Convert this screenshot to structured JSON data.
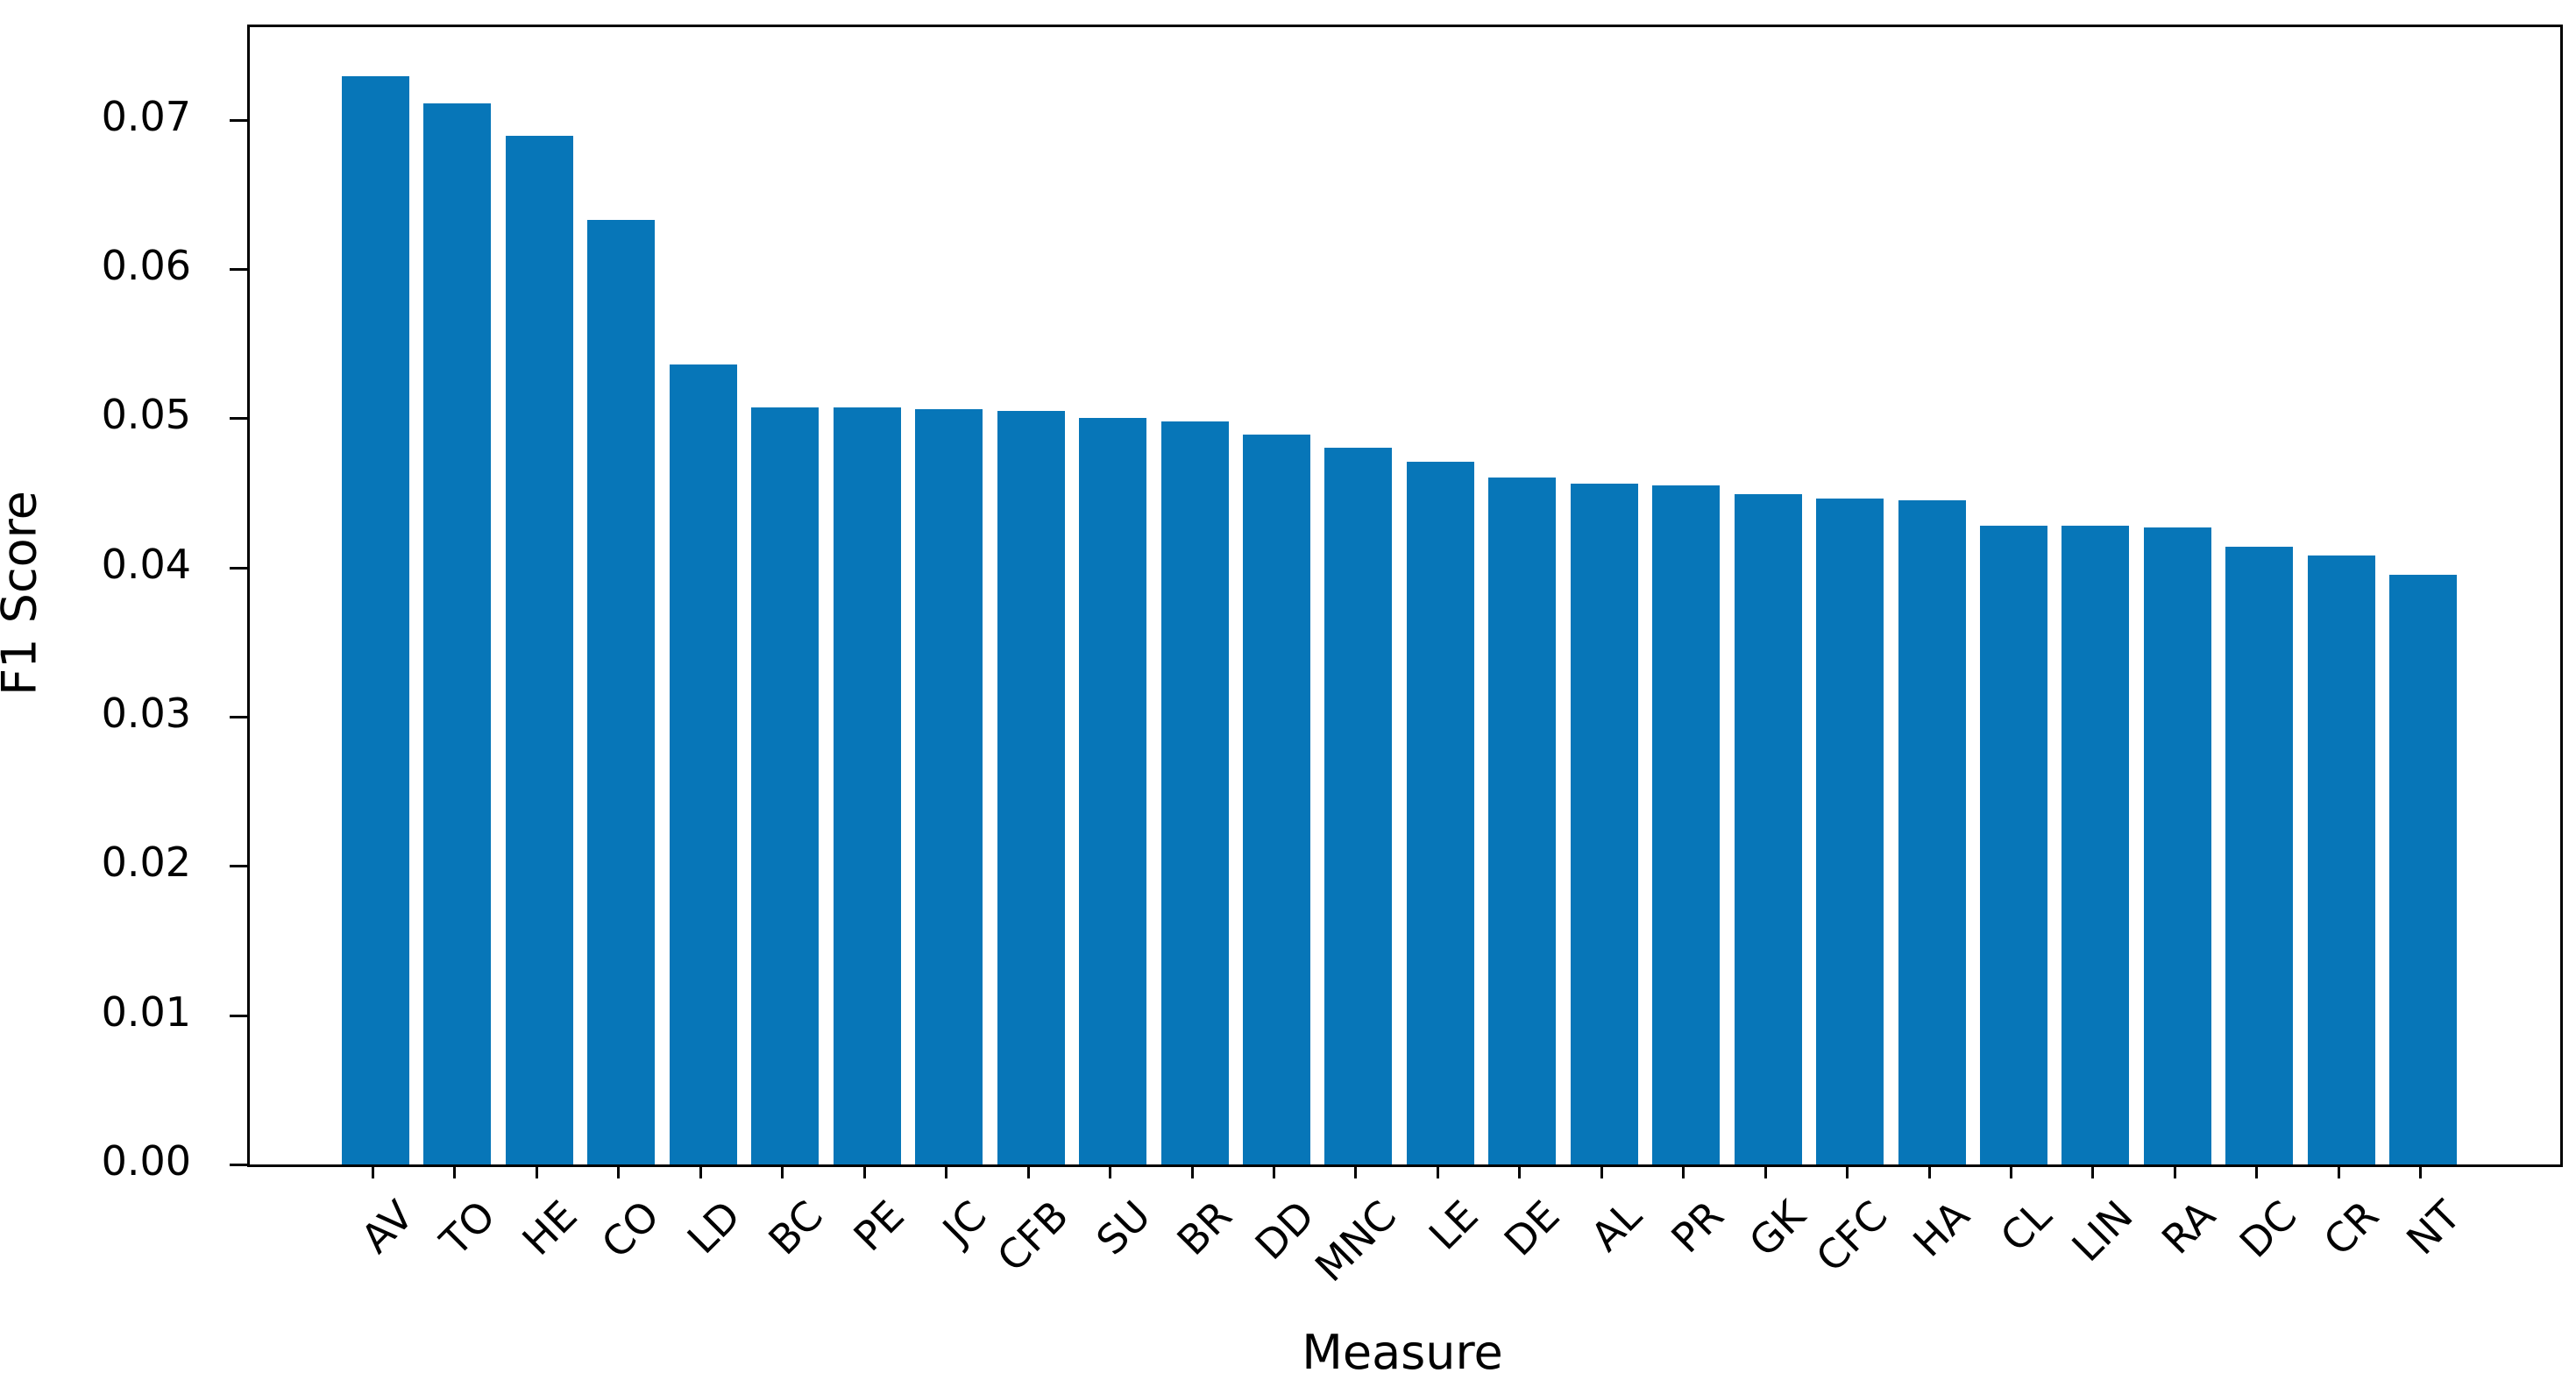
{
  "figure": {
    "background_color": "#ffffff",
    "bar_color": "#0776b8",
    "axis_color": "#000000",
    "text_color": "#000000"
  },
  "chart_data": {
    "type": "bar",
    "title": "",
    "xlabel": "Measure",
    "ylabel": "F1 Score",
    "categories": [
      "AV",
      "TO",
      "HE",
      "CO",
      "LD",
      "BC",
      "PE",
      "JC",
      "CFB",
      "SU",
      "BR",
      "DD",
      "MNC",
      "LE",
      "DE",
      "AL",
      "PR",
      "GK",
      "CFC",
      "HA",
      "CL",
      "LIN",
      "RA",
      "DC",
      "CR",
      "NT"
    ],
    "values": [
      0.0729,
      0.0711,
      0.0689,
      0.0633,
      0.0536,
      0.0507,
      0.0507,
      0.0506,
      0.0505,
      0.05,
      0.0498,
      0.0489,
      0.048,
      0.0471,
      0.046,
      0.0456,
      0.0455,
      0.0449,
      0.0446,
      0.0445,
      0.0428,
      0.0428,
      0.0427,
      0.0414,
      0.0408,
      0.0395
    ],
    "ylim": [
      0,
      0.0762
    ],
    "yticks": [
      0.0,
      0.01,
      0.02,
      0.03,
      0.04,
      0.05,
      0.06,
      0.07
    ],
    "ytick_labels": [
      "0.00",
      "0.01",
      "0.02",
      "0.03",
      "0.04",
      "0.05",
      "0.06",
      "0.07"
    ],
    "xtick_rotation_deg": 45,
    "grid": false,
    "legend": null,
    "bar_orientation": "vertical"
  }
}
